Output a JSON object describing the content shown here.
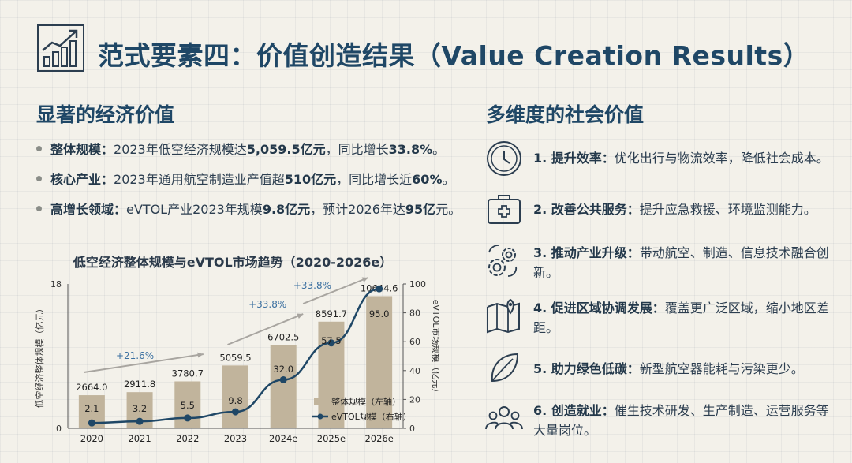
{
  "header": {
    "title": "范式要素四：价值创造结果（Value Creation Results）",
    "icon": "growth-chart-icon"
  },
  "economic": {
    "heading": "显著的经济价值",
    "bullets": [
      {
        "label": "整体规模：",
        "text_a": "2023年低空经济规模达",
        "hl_a": "5,059.5亿元",
        "text_b": "，同比增长",
        "hl_b": "33.8%",
        "text_c": "。"
      },
      {
        "label": "核心产业：",
        "text_a": "2023年通用航空制造业产值超",
        "hl_a": "510亿元",
        "text_b": "，同比增长近",
        "hl_b": "60%",
        "text_c": "。"
      },
      {
        "label": "高增长领域：",
        "text_a": "eVTOL产业2023年规模",
        "hl_a": "9.8亿元",
        "text_b": "，预计2026年达",
        "hl_b": "95亿",
        "text_c": "元。"
      }
    ]
  },
  "social": {
    "heading": "多维度的社会价值",
    "items": [
      {
        "icon": "clock-icon",
        "label": "1. 提升效率：",
        "text": "优化出行与物流效率，降低社会成本。"
      },
      {
        "icon": "medical-kit-icon",
        "label": "2. 改善公共服务：",
        "text": "提升应急救援、环境监测能力。"
      },
      {
        "icon": "gears-icon",
        "label": "3. 推动产业升级：",
        "text": "带动航空、制造、信息技术融合创新。"
      },
      {
        "icon": "map-pin-icon",
        "label": "4. 促进区域协调发展：",
        "text": "覆盖更广泛区域，缩小地区差距。"
      },
      {
        "icon": "leaf-icon",
        "label": "5. 助力绿色低碳：",
        "text": "新型航空器能耗与污染更少。"
      },
      {
        "icon": "people-icon",
        "label": "6. 创造就业：",
        "text": "催生技术研发、生产制造、运营服务等大量岗位。"
      }
    ]
  },
  "chart_data": {
    "type": "bar",
    "title": "低空经济整体规模与eVTOL市场趋势（2020-2026e）",
    "categories": [
      "2020",
      "2021",
      "2022",
      "2023",
      "2024e",
      "2025e",
      "2026e"
    ],
    "series": [
      {
        "name": "整体规模（左轴）",
        "type": "bar",
        "axis": "left",
        "values": [
          2664.0,
          2911.8,
          3780.7,
          5059.5,
          6702.5,
          8591.7,
          10644.6
        ],
        "labels": [
          "2664.0",
          "2911.8",
          "3780.7",
          "5059.5",
          "6702.5",
          "8591.7",
          "10644.6"
        ]
      },
      {
        "name": "eVTOL规模（右轴）",
        "type": "line",
        "axis": "right",
        "values": [
          2.1,
          3.2,
          5.5,
          9.8,
          32.0,
          57.5,
          95.0
        ],
        "labels": [
          "2.1",
          "3.2",
          "5.5",
          "9.8",
          "32.0",
          "57.5",
          "95.0"
        ]
      }
    ],
    "ylabel": "低空经济整体规模（亿元）",
    "y2label": "eVTOL市场规模（亿元）",
    "ylim": [
      0,
      18
    ],
    "y2lim": [
      0,
      100
    ],
    "yticks": [
      "0",
      "18"
    ],
    "y2ticks": [
      "0",
      "20",
      "40",
      "60",
      "80",
      "100"
    ],
    "annotations": [
      "+21.6%",
      "+33.8%",
      "+33.8%"
    ],
    "legend_position": "bottom-right",
    "colors": {
      "bar": "#c1b49c",
      "line": "#1f4766",
      "arrow": "#a8a5a0",
      "annotation": "#3a6fa0"
    }
  }
}
